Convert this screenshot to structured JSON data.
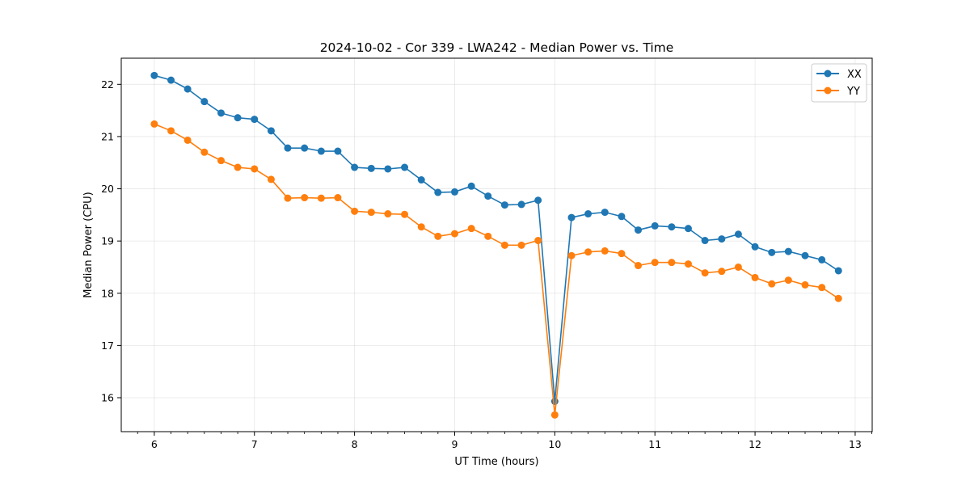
{
  "chart_data": {
    "type": "line",
    "title": "2024-10-02 - Cor 339 - LWA242 - Median Power vs. Time",
    "xlabel": "UT Time (hours)",
    "ylabel": "Median Power (CPU)",
    "xlim": [
      5.67,
      13.17
    ],
    "ylim": [
      15.35,
      22.5
    ],
    "xticks": [
      6,
      7,
      8,
      9,
      10,
      11,
      12,
      13
    ],
    "yticks": [
      16,
      17,
      18,
      19,
      20,
      21,
      22
    ],
    "grid": true,
    "legend_position": "top-right",
    "x": [
      6.0,
      6.167,
      6.333,
      6.5,
      6.667,
      6.833,
      7.0,
      7.167,
      7.333,
      7.5,
      7.667,
      7.833,
      8.0,
      8.167,
      8.333,
      8.5,
      8.667,
      8.833,
      9.0,
      9.167,
      9.333,
      9.5,
      9.667,
      9.833,
      10.0,
      10.167,
      10.333,
      10.5,
      10.667,
      10.833,
      11.0,
      11.167,
      11.333,
      11.5,
      11.667,
      11.833,
      12.0,
      12.167,
      12.333,
      12.5,
      12.667,
      12.833
    ],
    "series": [
      {
        "name": "XX",
        "color": "#1f77b4",
        "values": [
          22.17,
          22.08,
          21.91,
          21.67,
          21.45,
          21.36,
          21.33,
          21.11,
          20.78,
          20.78,
          20.72,
          20.72,
          20.41,
          20.39,
          20.38,
          20.41,
          20.17,
          19.93,
          19.94,
          20.05,
          19.86,
          19.69,
          19.7,
          19.78,
          15.93,
          19.45,
          19.52,
          19.55,
          19.47,
          19.21,
          19.29,
          19.27,
          19.24,
          19.01,
          19.04,
          19.13,
          18.89,
          18.78,
          18.8,
          18.72,
          18.64,
          18.43
        ]
      },
      {
        "name": "YY",
        "color": "#ff7f0e",
        "values": [
          21.24,
          21.11,
          20.93,
          20.7,
          20.54,
          20.41,
          20.38,
          20.18,
          19.82,
          19.83,
          19.82,
          19.83,
          19.57,
          19.55,
          19.52,
          19.51,
          19.27,
          19.09,
          19.14,
          19.24,
          19.09,
          18.92,
          18.92,
          19.01,
          15.67,
          18.72,
          18.79,
          18.81,
          18.76,
          18.53,
          18.59,
          18.59,
          18.56,
          18.39,
          18.42,
          18.5,
          18.3,
          18.18,
          18.25,
          18.16,
          18.11,
          17.9
        ]
      }
    ]
  }
}
